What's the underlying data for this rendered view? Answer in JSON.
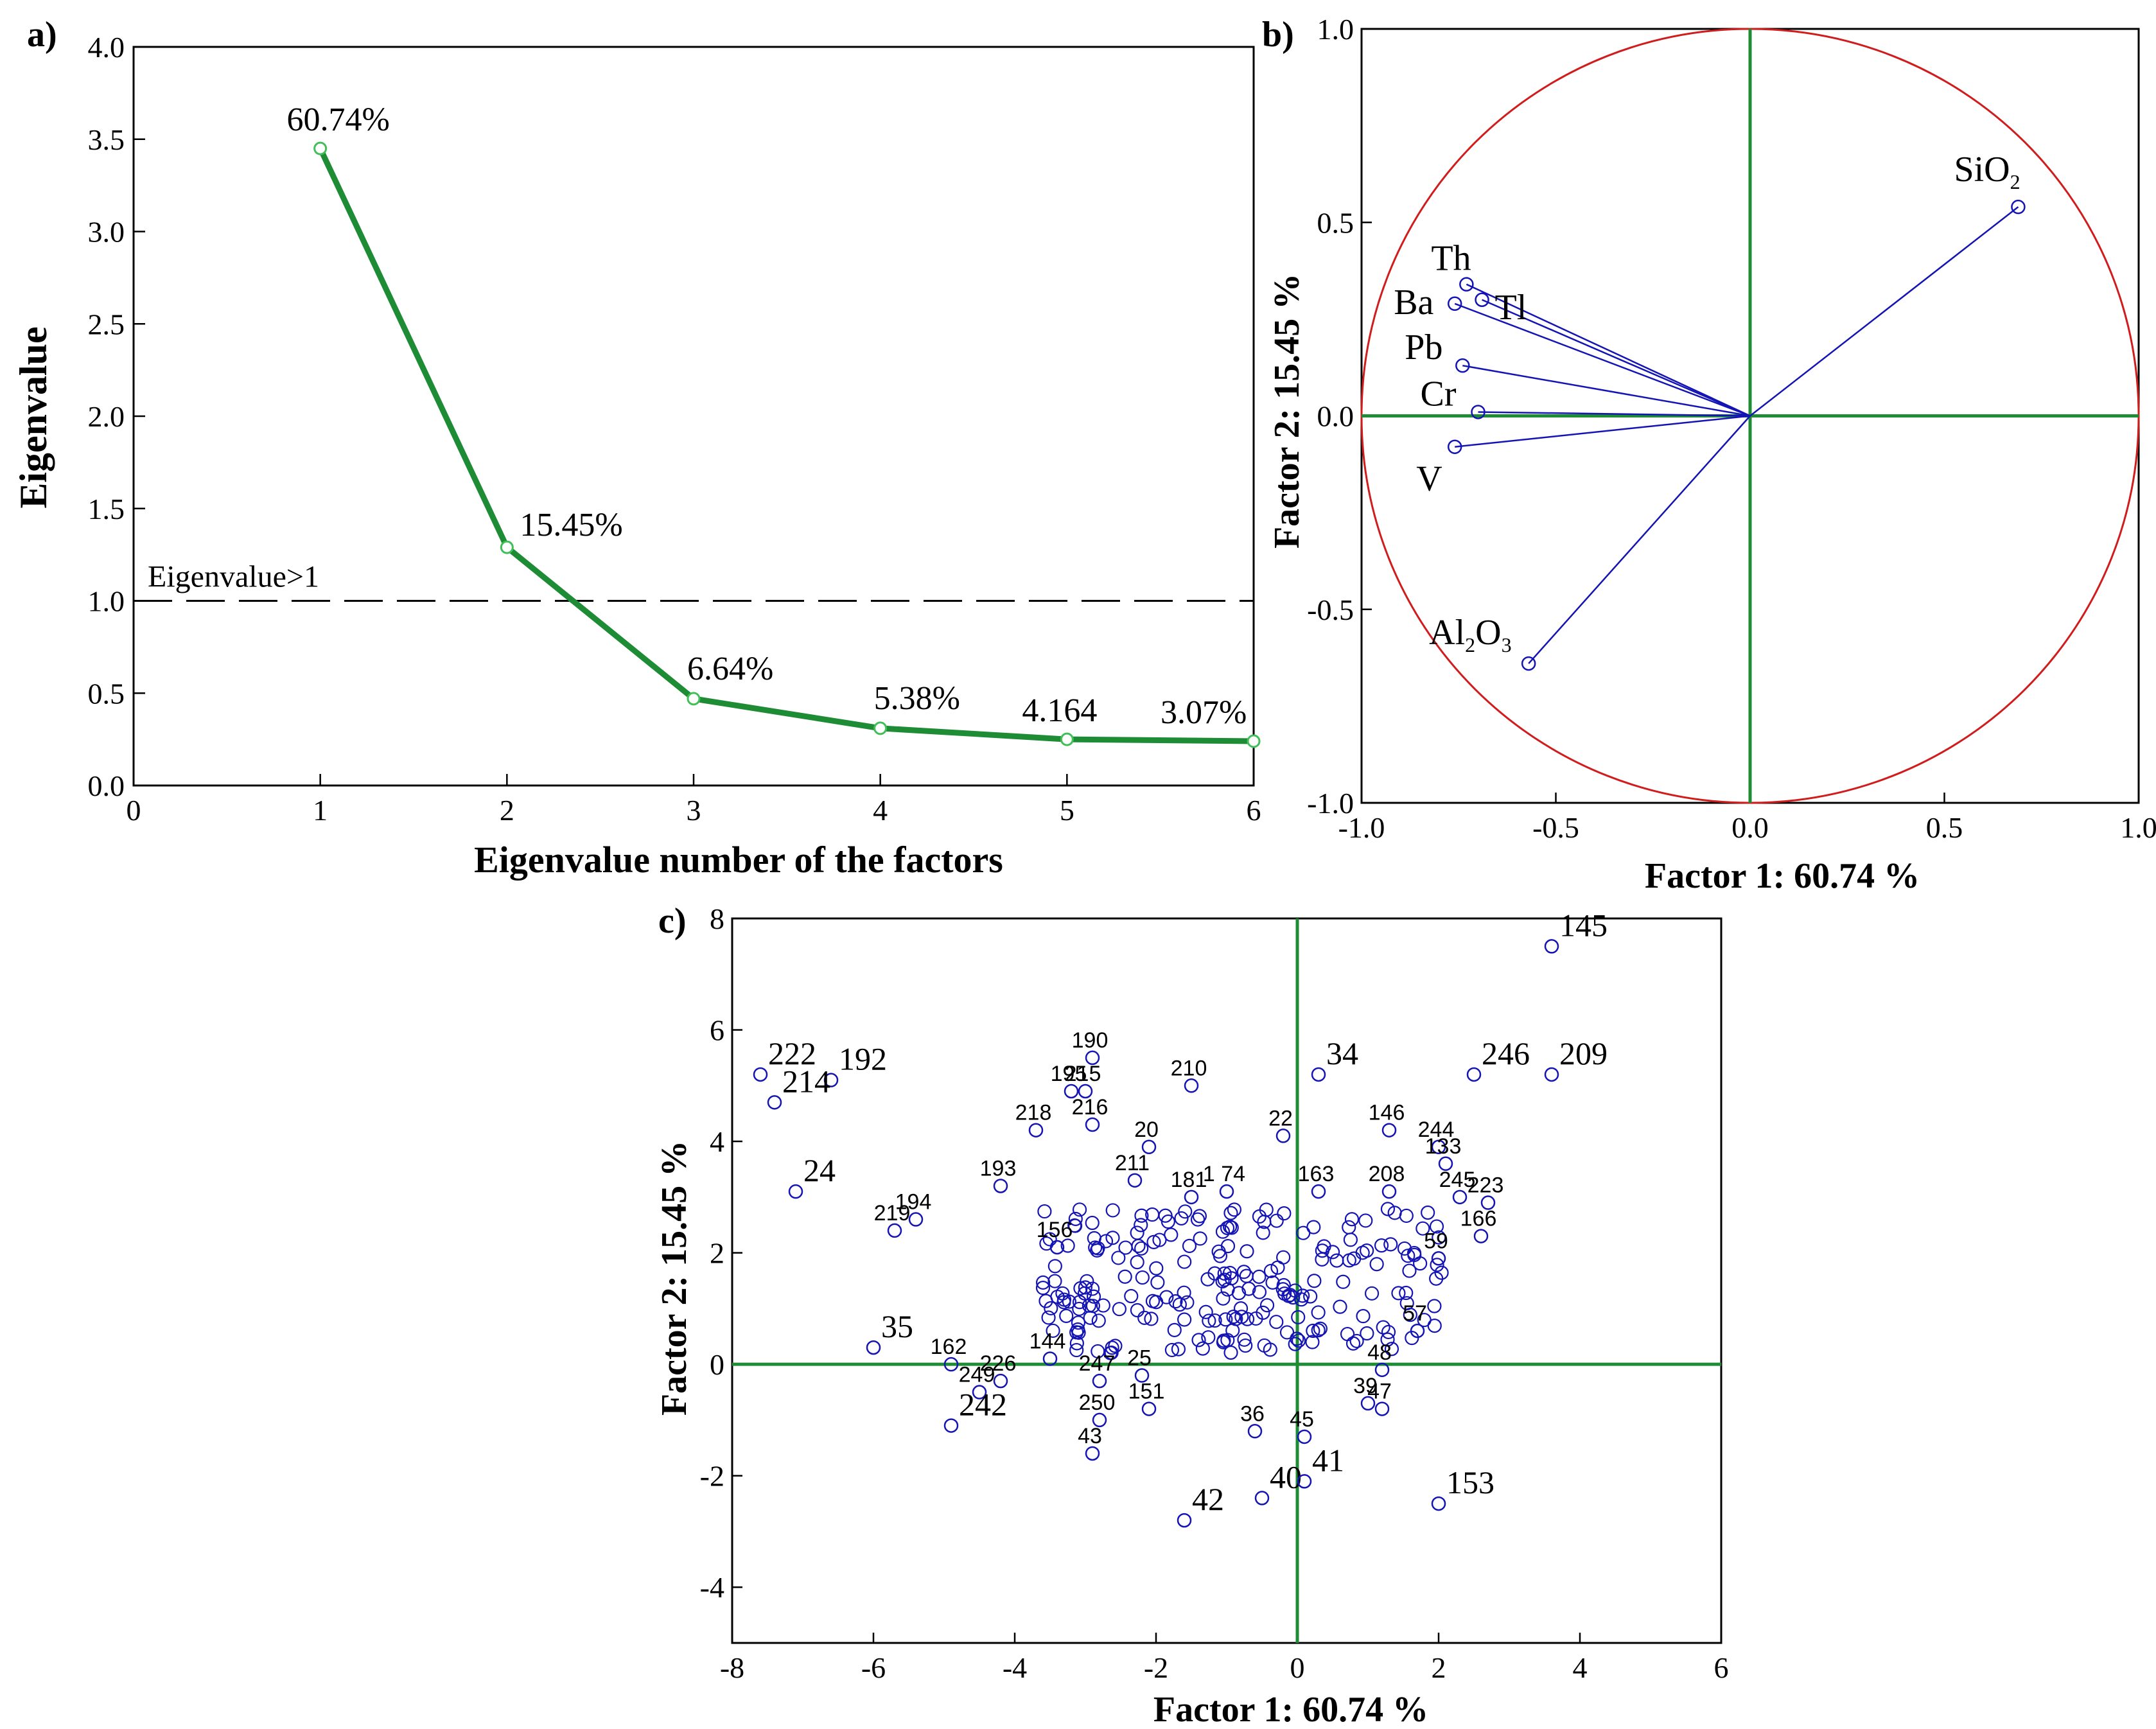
{
  "colors": {
    "line": "#1e8c35",
    "points": "#1414b4",
    "circle": "#d01c1c",
    "axes": "#1e8c35",
    "dashed": "#000000"
  },
  "chart_data": [
    {
      "panel": "a)",
      "type": "line",
      "title": "",
      "xlabel": "Eigenvalue number of the factors",
      "ylabel": "Eigenvalue",
      "xlim": [
        0,
        6
      ],
      "ylim": [
        0.0,
        4.0
      ],
      "xticks": [
        "0",
        "1",
        "2",
        "3",
        "4",
        "5",
        "6"
      ],
      "yticks": [
        "0.0",
        "0.5",
        "1.0",
        "1.5",
        "2.0",
        "2.5",
        "3.0",
        "3.5",
        "4.0"
      ],
      "x": [
        1,
        2,
        3,
        4,
        5,
        6
      ],
      "y": [
        3.45,
        1.29,
        0.47,
        0.31,
        0.25,
        0.24
      ],
      "data_labels": [
        "60.74%",
        "15.45%",
        "6.64%",
        "5.38%",
        "4.164",
        "3.07%"
      ],
      "threshold": {
        "value": 1.0,
        "label": "Eigenvalue>1"
      }
    },
    {
      "panel": "b)",
      "type": "scatter",
      "subtype": "loading-circle",
      "xlabel": "Factor 1: 60.74 %",
      "ylabel": "Factor 2: 15.45 %",
      "xlim": [
        -1.0,
        1.0
      ],
      "ylim": [
        -1.0,
        1.0
      ],
      "xticks": [
        "-1.0",
        "-0.5",
        "0.0",
        "0.5",
        "1.0"
      ],
      "yticks": [
        "-1.0",
        "-0.5",
        "0.0",
        "0.5",
        "1.0"
      ],
      "variables": [
        {
          "name": "SiO",
          "sub": "2",
          "post": "",
          "x": 0.69,
          "y": 0.54
        },
        {
          "name": "Th",
          "sub": "",
          "post": "",
          "x": -0.73,
          "y": 0.34
        },
        {
          "name": "Tl",
          "sub": "",
          "post": "",
          "x": -0.69,
          "y": 0.3
        },
        {
          "name": "Ba",
          "sub": "",
          "post": "",
          "x": -0.76,
          "y": 0.29
        },
        {
          "name": "Pb",
          "sub": "",
          "post": "",
          "x": -0.74,
          "y": 0.13
        },
        {
          "name": "Cr",
          "sub": "",
          "post": "",
          "x": -0.7,
          "y": 0.01
        },
        {
          "name": "V",
          "sub": "",
          "post": "",
          "x": -0.76,
          "y": -0.08
        },
        {
          "name": "Al",
          "sub": "2",
          "post": "O",
          "sub2": "3",
          "x": -0.57,
          "y": -0.64
        }
      ]
    },
    {
      "panel": "c)",
      "type": "scatter",
      "subtype": "score-plot",
      "xlabel": "Factor 1: 60.74 %",
      "ylabel": "Factor 2: 15.45 %",
      "xlim": [
        -8,
        6
      ],
      "ylim": [
        -5,
        8
      ],
      "xticks": [
        "-8",
        "-6",
        "-4",
        "-2",
        "0",
        "2",
        "4",
        "6"
      ],
      "yticks": [
        "-4",
        "-2",
        "0",
        "2",
        "4",
        "6",
        "8"
      ],
      "labeled_points": [
        {
          "label": "145",
          "x": 3.6,
          "y": 7.5
        },
        {
          "label": "209",
          "x": 3.6,
          "y": 5.2
        },
        {
          "label": "246",
          "x": 2.5,
          "y": 5.2
        },
        {
          "label": "34",
          "x": 0.3,
          "y": 5.2
        },
        {
          "label": "22",
          "x": -0.2,
          "y": 4.1
        },
        {
          "label": "210",
          "x": -1.5,
          "y": 5.0
        },
        {
          "label": "190",
          "x": -2.9,
          "y": 5.5
        },
        {
          "label": "195",
          "x": -3.2,
          "y": 4.9
        },
        {
          "label": "215",
          "x": -3.0,
          "y": 4.9
        },
        {
          "label": "218",
          "x": -3.7,
          "y": 4.2
        },
        {
          "label": "216",
          "x": -2.9,
          "y": 4.3
        },
        {
          "label": "20",
          "x": -2.1,
          "y": 3.9
        },
        {
          "label": "222",
          "x": -7.6,
          "y": 5.2
        },
        {
          "label": "192",
          "x": -6.6,
          "y": 5.1
        },
        {
          "label": "214",
          "x": -7.4,
          "y": 4.7
        },
        {
          "label": "24",
          "x": -7.1,
          "y": 3.1
        },
        {
          "label": "219",
          "x": -5.7,
          "y": 2.4
        },
        {
          "label": "194",
          "x": -5.4,
          "y": 2.6
        },
        {
          "label": "193",
          "x": -4.2,
          "y": 3.2
        },
        {
          "label": "211",
          "x": -2.3,
          "y": 3.3
        },
        {
          "label": "181",
          "x": -1.5,
          "y": 3.0
        },
        {
          "label": "1 74",
          "x": -1.0,
          "y": 3.1
        },
        {
          "label": "163",
          "x": 0.3,
          "y": 3.1
        },
        {
          "label": "208",
          "x": 1.3,
          "y": 3.1
        },
        {
          "label": "146",
          "x": 1.3,
          "y": 4.2
        },
        {
          "label": "244",
          "x": 2.0,
          "y": 3.9
        },
        {
          "label": "133",
          "x": 2.1,
          "y": 3.6
        },
        {
          "label": "245",
          "x": 2.3,
          "y": 3.0
        },
        {
          "label": "223",
          "x": 2.7,
          "y": 2.9
        },
        {
          "label": "166",
          "x": 2.6,
          "y": 2.3
        },
        {
          "label": "35",
          "x": -6.0,
          "y": 0.3
        },
        {
          "label": "162",
          "x": -4.9,
          "y": 0.0
        },
        {
          "label": "249",
          "x": -4.5,
          "y": -0.5
        },
        {
          "label": "226",
          "x": -4.2,
          "y": -0.3
        },
        {
          "label": "242",
          "x": -4.9,
          "y": -1.1
        },
        {
          "label": "247",
          "x": -2.8,
          "y": -0.3
        },
        {
          "label": "25",
          "x": -2.2,
          "y": -0.2
        },
        {
          "label": "250",
          "x": -2.8,
          "y": -1.0
        },
        {
          "label": "151",
          "x": -2.1,
          "y": -0.8
        },
        {
          "label": "43",
          "x": -2.9,
          "y": -1.6
        },
        {
          "label": "36",
          "x": -0.6,
          "y": -1.2
        },
        {
          "label": "45",
          "x": 0.1,
          "y": -1.3
        },
        {
          "label": "39",
          "x": 1.0,
          "y": -0.7
        },
        {
          "label": "47",
          "x": 1.2,
          "y": -0.8
        },
        {
          "label": "40",
          "x": -0.5,
          "y": -2.4
        },
        {
          "label": "41",
          "x": 0.1,
          "y": -2.1
        },
        {
          "label": "42",
          "x": -1.6,
          "y": -2.8
        },
        {
          "label": "153",
          "x": 2.0,
          "y": -2.5
        },
        {
          "label": "156",
          "x": -3.4,
          "y": 2.1
        },
        {
          "label": "59",
          "x": 2.0,
          "y": 1.9
        },
        {
          "label": "48",
          "x": 1.2,
          "y": -0.1
        },
        {
          "label": "57",
          "x": 1.7,
          "y": 0.6
        },
        {
          "label": "144",
          "x": -3.5,
          "y": 0.1
        }
      ]
    }
  ]
}
